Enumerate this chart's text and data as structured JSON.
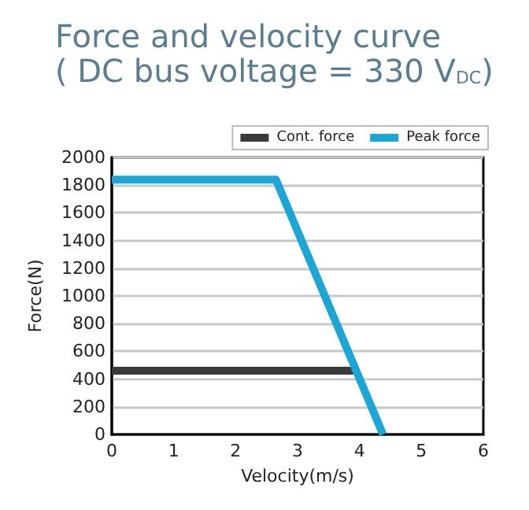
{
  "chart_data": {
    "type": "line",
    "title": "Force and velocity curve",
    "subtitle": "( DC bus voltage = 330 V$_{DC}$)",
    "xlabel": "Velocity(m/s)",
    "ylabel": "Force(N)",
    "xlim": [
      0,
      6
    ],
    "xticks": [
      0,
      1,
      2,
      3,
      4,
      5,
      6
    ],
    "ylim": [
      0,
      2000
    ],
    "yticks": [
      0,
      200,
      400,
      600,
      800,
      1000,
      1200,
      1400,
      1600,
      1800,
      2000
    ],
    "series": [
      {
        "name": "Cont. force",
        "color": "#3a3a3a",
        "x": [
          0,
          3.9
        ],
        "values": [
          460,
          460
        ]
      },
      {
        "name": "Peak force",
        "color": "#1ba6d6",
        "x": [
          0,
          2.65,
          4.38
        ],
        "values": [
          1840,
          1840,
          0
        ]
      }
    ],
    "grid": "y",
    "legend": "top right",
    "marker": "none",
    "line_style": "solid"
  }
}
